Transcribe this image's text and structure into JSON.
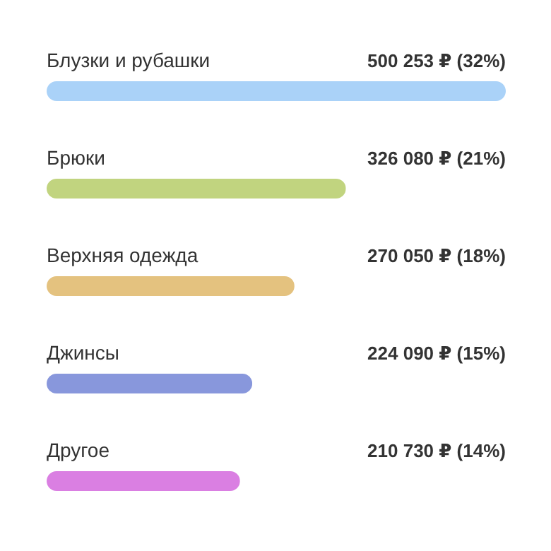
{
  "chart_data": {
    "type": "bar",
    "orientation": "horizontal",
    "categories": [
      "Блузки и рубашки",
      "Брюки",
      "Верхняя одежда",
      "Джинсы",
      "Другое"
    ],
    "values": [
      500253,
      326080,
      270050,
      224090,
      210730
    ],
    "colors": [
      "#aad2f8",
      "#c1d47f",
      "#e4c27f",
      "#8897dc",
      "#da7fe2"
    ],
    "value_labels": [
      "500 253 ₽ (32%)",
      "326 080 ₽ (21%)",
      "270 050 ₽ (18%)",
      "224 090 ₽ (15%)",
      "210 730 ₽ (14%)"
    ]
  }
}
